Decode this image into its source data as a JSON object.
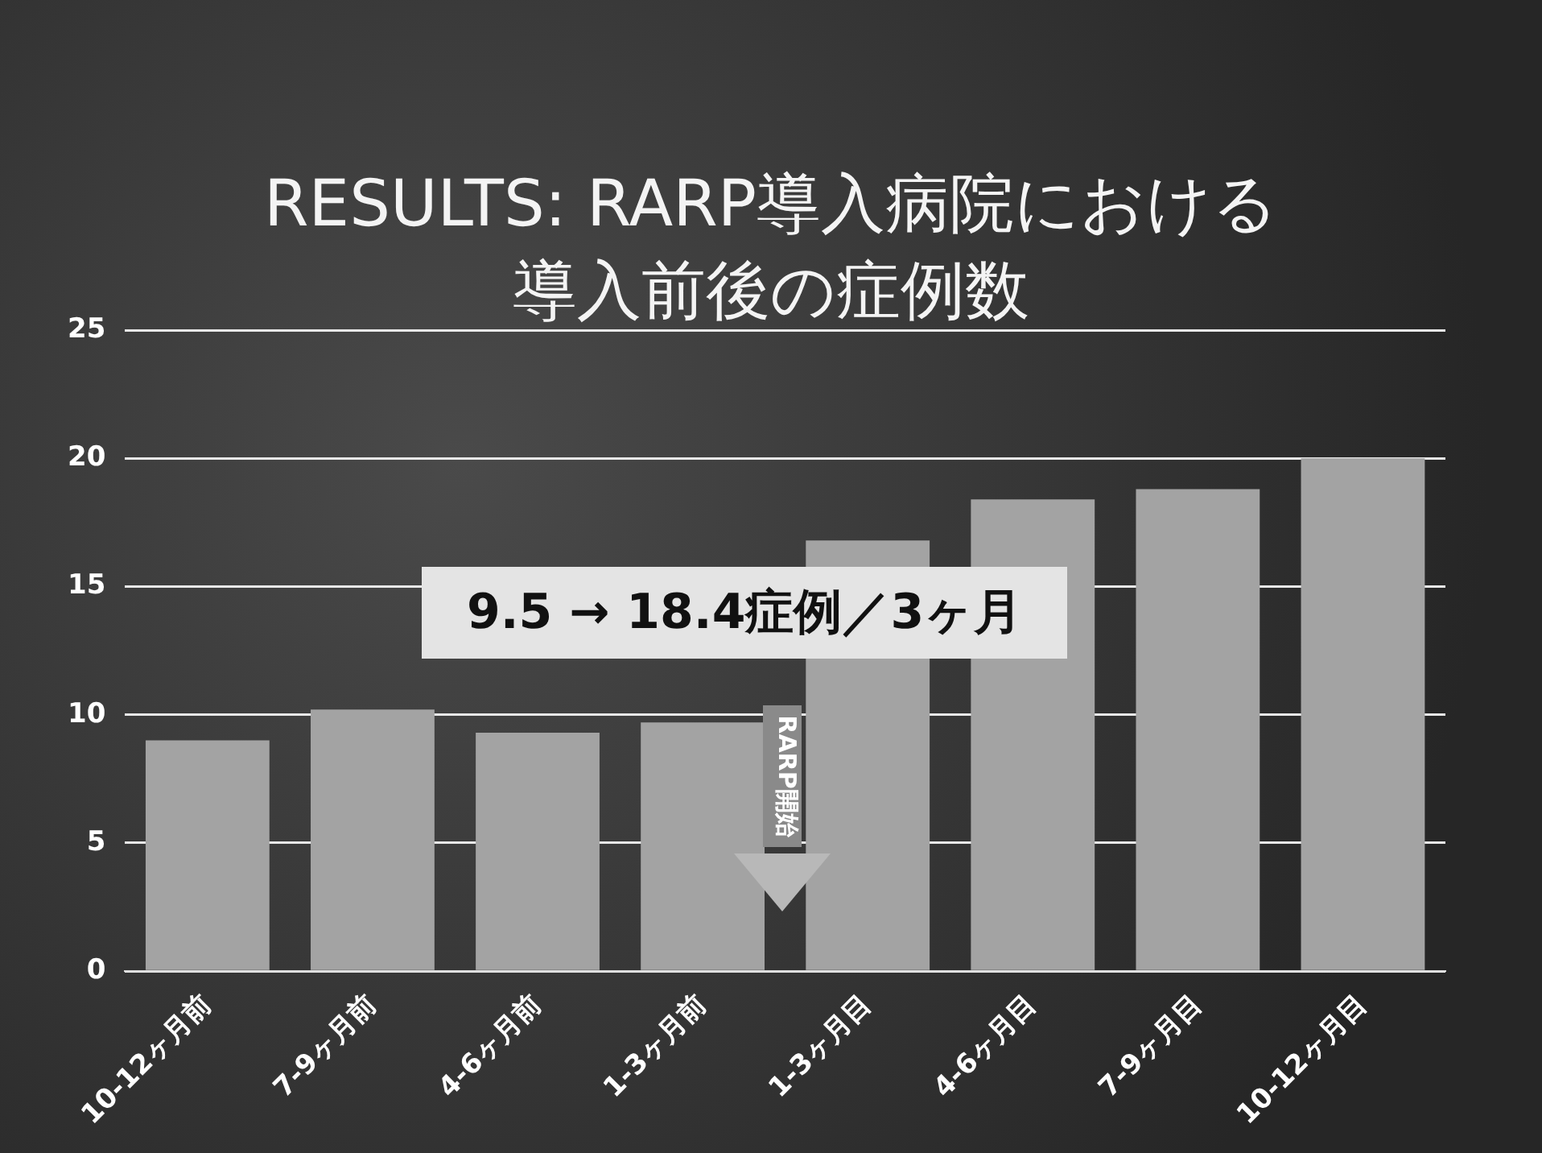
{
  "chart_data": {
    "type": "bar",
    "title": "RESULTS: RARP導入病院における導入前後の症例数",
    "categories": [
      "10-12ヶ月前",
      "7-9ヶ月前",
      "4-6ヶ月前",
      "1-3ヶ月前",
      "1-3ヶ月目",
      "4-6ヶ月目",
      "7-9ヶ月目",
      "10-12ヶ月目"
    ],
    "values": [
      9.0,
      10.2,
      9.3,
      9.7,
      16.8,
      18.4,
      18.8,
      20.0
    ],
    "color": "#a3a3a3",
    "ylim": [
      0,
      25
    ],
    "yticks": [
      0,
      5,
      10,
      15,
      20,
      25
    ],
    "grid": "y",
    "annotations": [
      "9.5 → 18.4症例／3ヶ月",
      "RARP開始"
    ]
  }
}
